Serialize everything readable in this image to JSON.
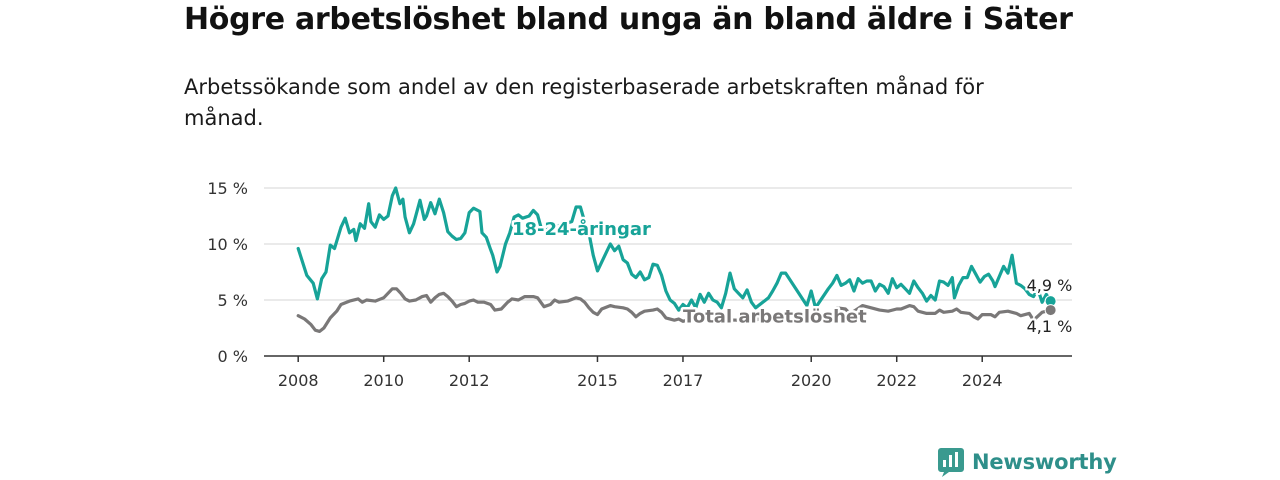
{
  "title": "Högre arbetslöshet bland unga än bland äldre i Säter",
  "subtitle": "Arbetssökande som andel av den registerbaserade arbetskraften månad för månad.",
  "brand": {
    "name": "Newsworthy",
    "icon": "bar-chart-icon",
    "color": "#3a9a8f"
  },
  "colors": {
    "youth": "#17a398",
    "total": "#7a7878",
    "grid": "#d6d6d6",
    "axis": "#333333"
  },
  "chart_data": {
    "type": "line",
    "ylim": [
      0,
      15
    ],
    "grid": true,
    "y_ticks": [
      {
        "value": 0,
        "label": "0 %"
      },
      {
        "value": 5,
        "label": "5 %"
      },
      {
        "value": 10,
        "label": "10 %"
      },
      {
        "value": 15,
        "label": "15 %"
      }
    ],
    "x_ticks": [
      {
        "value": 2008.0,
        "label": "2008"
      },
      {
        "value": 2010.0,
        "label": "2010"
      },
      {
        "value": 2012.0,
        "label": "2012"
      },
      {
        "value": 2015.0,
        "label": "2015"
      },
      {
        "value": 2017.0,
        "label": "2017"
      },
      {
        "value": 2020.0,
        "label": "2020"
      },
      {
        "value": 2022.0,
        "label": "2022"
      },
      {
        "value": 2024.0,
        "label": "2024"
      }
    ],
    "series": [
      {
        "name": "18-24-åringar",
        "color": "#17a398",
        "end_label": "4,9 %",
        "points": [
          [
            2008.0,
            9.6
          ],
          [
            2008.2,
            7.2
          ],
          [
            2008.35,
            6.5
          ],
          [
            2008.45,
            5.1
          ],
          [
            2008.55,
            6.9
          ],
          [
            2008.65,
            7.5
          ],
          [
            2008.75,
            9.9
          ],
          [
            2008.85,
            9.6
          ],
          [
            2009.0,
            11.5
          ],
          [
            2009.1,
            12.3
          ],
          [
            2009.2,
            11.0
          ],
          [
            2009.3,
            11.3
          ],
          [
            2009.35,
            10.3
          ],
          [
            2009.45,
            11.8
          ],
          [
            2009.55,
            11.4
          ],
          [
            2009.65,
            13.6
          ],
          [
            2009.7,
            12.0
          ],
          [
            2009.8,
            11.5
          ],
          [
            2009.9,
            12.6
          ],
          [
            2010.0,
            12.2
          ],
          [
            2010.1,
            12.5
          ],
          [
            2010.2,
            14.3
          ],
          [
            2010.28,
            15.0
          ],
          [
            2010.38,
            13.6
          ],
          [
            2010.45,
            14.0
          ],
          [
            2010.5,
            12.4
          ],
          [
            2010.6,
            11.0
          ],
          [
            2010.7,
            11.8
          ],
          [
            2010.85,
            13.9
          ],
          [
            2010.95,
            12.2
          ],
          [
            2011.0,
            12.5
          ],
          [
            2011.1,
            13.7
          ],
          [
            2011.2,
            12.7
          ],
          [
            2011.3,
            14.0
          ],
          [
            2011.4,
            12.8
          ],
          [
            2011.5,
            11.1
          ],
          [
            2011.6,
            10.7
          ],
          [
            2011.7,
            10.4
          ],
          [
            2011.8,
            10.5
          ],
          [
            2011.9,
            11.0
          ],
          [
            2012.0,
            12.8
          ],
          [
            2012.1,
            13.2
          ],
          [
            2012.25,
            12.9
          ],
          [
            2012.3,
            11.0
          ],
          [
            2012.4,
            10.6
          ],
          [
            2012.5,
            9.5
          ],
          [
            2012.55,
            9.0
          ],
          [
            2012.65,
            7.5
          ],
          [
            2012.72,
            8.0
          ],
          [
            2012.85,
            10.0
          ],
          [
            2012.95,
            11.0
          ],
          [
            2013.05,
            12.4
          ],
          [
            2013.15,
            12.6
          ],
          [
            2013.25,
            12.3
          ],
          [
            2013.4,
            12.5
          ],
          [
            2013.5,
            13.0
          ],
          [
            2013.6,
            12.6
          ],
          [
            2013.7,
            11.2
          ],
          [
            2014.4,
            12.0
          ],
          [
            2014.5,
            13.3
          ],
          [
            2014.6,
            13.3
          ],
          [
            2014.7,
            12.0
          ],
          [
            2014.8,
            11.0
          ],
          [
            2014.9,
            9.0
          ],
          [
            2015.0,
            7.6
          ],
          [
            2015.3,
            10.0
          ],
          [
            2015.4,
            9.4
          ],
          [
            2015.5,
            9.8
          ],
          [
            2015.6,
            8.6
          ],
          [
            2015.7,
            8.3
          ],
          [
            2015.8,
            7.3
          ],
          [
            2015.9,
            7.0
          ],
          [
            2016.0,
            7.5
          ],
          [
            2016.1,
            6.8
          ],
          [
            2016.2,
            7.0
          ],
          [
            2016.3,
            8.2
          ],
          [
            2016.4,
            8.1
          ],
          [
            2016.5,
            7.2
          ],
          [
            2016.6,
            5.8
          ],
          [
            2016.7,
            5.0
          ],
          [
            2016.8,
            4.7
          ],
          [
            2016.9,
            4.1
          ],
          [
            2017.0,
            4.6
          ],
          [
            2017.1,
            4.3
          ],
          [
            2017.2,
            5.0
          ],
          [
            2017.3,
            4.3
          ],
          [
            2017.4,
            5.5
          ],
          [
            2017.5,
            4.8
          ],
          [
            2017.6,
            5.6
          ],
          [
            2017.7,
            5.0
          ],
          [
            2017.8,
            4.8
          ],
          [
            2017.9,
            4.3
          ],
          [
            2018.0,
            5.6
          ],
          [
            2018.1,
            7.4
          ],
          [
            2018.2,
            6.0
          ],
          [
            2018.3,
            5.6
          ],
          [
            2018.4,
            5.2
          ],
          [
            2018.5,
            5.9
          ],
          [
            2018.6,
            4.8
          ],
          [
            2018.7,
            4.3
          ],
          [
            2019.0,
            5.2
          ],
          [
            2019.1,
            5.8
          ],
          [
            2019.2,
            6.5
          ],
          [
            2019.3,
            7.4
          ],
          [
            2019.4,
            7.4
          ],
          [
            2019.9,
            4.5
          ],
          [
            2020.0,
            5.8
          ],
          [
            2020.1,
            4.3
          ],
          [
            2020.4,
            6.0
          ],
          [
            2020.5,
            6.5
          ],
          [
            2020.6,
            7.2
          ],
          [
            2020.7,
            6.3
          ],
          [
            2020.8,
            6.5
          ],
          [
            2020.9,
            6.8
          ],
          [
            2021.0,
            5.8
          ],
          [
            2021.1,
            6.9
          ],
          [
            2021.2,
            6.5
          ],
          [
            2021.3,
            6.7
          ],
          [
            2021.4,
            6.7
          ],
          [
            2021.5,
            5.8
          ],
          [
            2021.6,
            6.4
          ],
          [
            2021.7,
            6.2
          ],
          [
            2021.8,
            5.6
          ],
          [
            2021.9,
            6.9
          ],
          [
            2022.0,
            6.1
          ],
          [
            2022.1,
            6.4
          ],
          [
            2022.2,
            6.0
          ],
          [
            2022.3,
            5.6
          ],
          [
            2022.4,
            6.7
          ],
          [
            2022.5,
            6.1
          ],
          [
            2022.6,
            5.6
          ],
          [
            2022.7,
            4.9
          ],
          [
            2022.8,
            5.4
          ],
          [
            2022.9,
            5.0
          ],
          [
            2023.0,
            6.7
          ],
          [
            2023.1,
            6.6
          ],
          [
            2023.2,
            6.3
          ],
          [
            2023.3,
            7.0
          ],
          [
            2023.35,
            5.2
          ],
          [
            2023.45,
            6.3
          ],
          [
            2023.55,
            7.0
          ],
          [
            2023.65,
            7.0
          ],
          [
            2023.75,
            8.0
          ],
          [
            2023.85,
            7.3
          ],
          [
            2023.95,
            6.6
          ],
          [
            2024.05,
            7.1
          ],
          [
            2024.15,
            7.3
          ],
          [
            2024.25,
            6.7
          ],
          [
            2024.3,
            6.2
          ],
          [
            2024.4,
            7.1
          ],
          [
            2024.5,
            8.0
          ],
          [
            2024.6,
            7.4
          ],
          [
            2024.7,
            9.0
          ],
          [
            2024.8,
            6.5
          ],
          [
            2024.9,
            6.3
          ],
          [
            2025.0,
            6.0
          ],
          [
            2025.1,
            5.5
          ],
          [
            2025.2,
            5.3
          ],
          [
            2025.3,
            6.0
          ],
          [
            2025.4,
            4.8
          ],
          [
            2025.5,
            5.5
          ],
          [
            2025.6,
            4.9
          ]
        ]
      },
      {
        "name": "Total arbetslöshet",
        "color": "#7a7878",
        "end_label": "4,1 %",
        "points": [
          [
            2008.0,
            3.6
          ],
          [
            2008.15,
            3.3
          ],
          [
            2008.3,
            2.8
          ],
          [
            2008.4,
            2.3
          ],
          [
            2008.5,
            2.2
          ],
          [
            2008.6,
            2.5
          ],
          [
            2008.75,
            3.4
          ],
          [
            2008.9,
            4.0
          ],
          [
            2009.0,
            4.6
          ],
          [
            2009.2,
            4.9
          ],
          [
            2009.4,
            5.1
          ],
          [
            2009.5,
            4.8
          ],
          [
            2009.6,
            5.0
          ],
          [
            2009.8,
            4.9
          ],
          [
            2010.0,
            5.2
          ],
          [
            2010.1,
            5.6
          ],
          [
            2010.2,
            6.0
          ],
          [
            2010.3,
            6.0
          ],
          [
            2010.4,
            5.6
          ],
          [
            2010.5,
            5.1
          ],
          [
            2010.6,
            4.9
          ],
          [
            2010.75,
            5.0
          ],
          [
            2010.9,
            5.3
          ],
          [
            2011.0,
            5.4
          ],
          [
            2011.1,
            4.8
          ],
          [
            2011.2,
            5.2
          ],
          [
            2011.3,
            5.5
          ],
          [
            2011.4,
            5.6
          ],
          [
            2011.5,
            5.3
          ],
          [
            2011.6,
            4.9
          ],
          [
            2011.7,
            4.4
          ],
          [
            2011.8,
            4.6
          ],
          [
            2011.9,
            4.7
          ],
          [
            2012.0,
            4.9
          ],
          [
            2012.1,
            5.0
          ],
          [
            2012.2,
            4.8
          ],
          [
            2012.35,
            4.8
          ],
          [
            2012.5,
            4.6
          ],
          [
            2012.6,
            4.1
          ],
          [
            2012.75,
            4.2
          ],
          [
            2012.9,
            4.8
          ],
          [
            2013.0,
            5.1
          ],
          [
            2013.15,
            5.0
          ],
          [
            2013.3,
            5.3
          ],
          [
            2013.5,
            5.3
          ],
          [
            2013.6,
            5.2
          ],
          [
            2013.75,
            4.4
          ],
          [
            2013.9,
            4.6
          ],
          [
            2014.0,
            5.0
          ],
          [
            2014.1,
            4.8
          ],
          [
            2014.3,
            4.9
          ],
          [
            2014.5,
            5.2
          ],
          [
            2014.6,
            5.1
          ],
          [
            2014.7,
            4.8
          ],
          [
            2014.8,
            4.3
          ],
          [
            2014.9,
            3.9
          ],
          [
            2015.0,
            3.7
          ],
          [
            2015.1,
            4.2
          ],
          [
            2015.3,
            4.5
          ],
          [
            2015.4,
            4.4
          ],
          [
            2015.6,
            4.3
          ],
          [
            2015.7,
            4.2
          ],
          [
            2015.8,
            3.9
          ],
          [
            2015.9,
            3.5
          ],
          [
            2016.0,
            3.8
          ],
          [
            2016.1,
            4.0
          ],
          [
            2016.3,
            4.1
          ],
          [
            2016.4,
            4.2
          ],
          [
            2016.5,
            3.9
          ],
          [
            2016.6,
            3.4
          ],
          [
            2016.8,
            3.2
          ],
          [
            2016.9,
            3.3
          ],
          [
            2017.0,
            3.1
          ],
          [
            2017.2,
            3.3
          ],
          [
            2018.3,
            3.2
          ],
          [
            2018.5,
            3.3
          ],
          [
            2018.7,
            3.2
          ],
          [
            2018.9,
            3.5
          ],
          [
            2019.1,
            3.5
          ],
          [
            2019.3,
            3.5
          ],
          [
            2019.5,
            3.8
          ],
          [
            2019.7,
            3.6
          ],
          [
            2019.9,
            3.6
          ],
          [
            2020.1,
            3.8
          ],
          [
            2020.3,
            3.6
          ],
          [
            2020.5,
            3.7
          ],
          [
            2020.6,
            4.3
          ],
          [
            2020.8,
            4.2
          ],
          [
            2020.9,
            3.8
          ],
          [
            2021.0,
            4.0
          ],
          [
            2021.2,
            4.5
          ],
          [
            2021.4,
            4.3
          ],
          [
            2021.6,
            4.1
          ],
          [
            2021.8,
            4.0
          ],
          [
            2022.0,
            4.2
          ],
          [
            2022.1,
            4.2
          ],
          [
            2022.3,
            4.5
          ],
          [
            2022.4,
            4.4
          ],
          [
            2022.5,
            4.0
          ],
          [
            2022.7,
            3.8
          ],
          [
            2022.9,
            3.8
          ],
          [
            2023.0,
            4.1
          ],
          [
            2023.1,
            3.9
          ],
          [
            2023.3,
            4.0
          ],
          [
            2023.4,
            4.2
          ],
          [
            2023.5,
            3.9
          ],
          [
            2023.7,
            3.8
          ],
          [
            2023.8,
            3.5
          ],
          [
            2023.9,
            3.3
          ],
          [
            2024.0,
            3.7
          ],
          [
            2024.2,
            3.7
          ],
          [
            2024.3,
            3.5
          ],
          [
            2024.4,
            3.9
          ],
          [
            2024.6,
            4.0
          ],
          [
            2024.8,
            3.8
          ],
          [
            2024.9,
            3.6
          ],
          [
            2025.1,
            3.8
          ],
          [
            2025.2,
            3.2
          ],
          [
            2025.4,
            3.9
          ],
          [
            2025.5,
            4.0
          ],
          [
            2025.6,
            4.1
          ]
        ]
      }
    ],
    "annotations": [
      {
        "text": "18-24-åringar",
        "series": 0,
        "x": 2013.0,
        "y": 10.8
      },
      {
        "text": "Total arbetslöshet",
        "series": 1,
        "x": 2017.0,
        "y": 3.0
      }
    ]
  }
}
